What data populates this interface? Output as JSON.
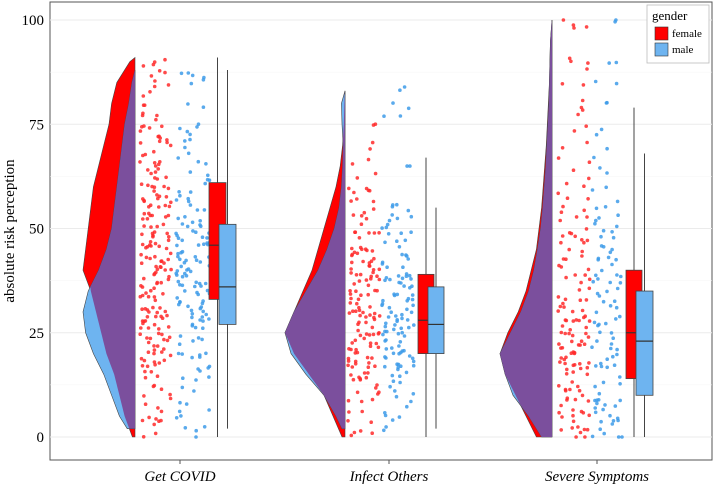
{
  "chart_data": {
    "type": "raincloud",
    "ylabel": "absolute risk perception",
    "ylim": [
      0,
      100
    ],
    "yticks": [
      0,
      25,
      50,
      75,
      100
    ],
    "categories": [
      "Get COVID",
      "Infect Others",
      "Severe Symptoms"
    ],
    "legend": {
      "title": "gender",
      "position": "top-right",
      "entries": [
        {
          "label": "female",
          "color": "#ff0000"
        },
        {
          "label": "male",
          "color": "#6eb4f0"
        }
      ]
    },
    "overlap_color": "#7b4f9d",
    "series": [
      {
        "name": "female",
        "color": "#ff0000",
        "box": [
          {
            "category": "Get COVID",
            "whisker_low": 0,
            "q1": 33,
            "median": 46,
            "q3": 61,
            "whisker_high": 91
          },
          {
            "category": "Infect Others",
            "whisker_low": 0,
            "q1": 20,
            "median": 28,
            "q3": 39,
            "whisker_high": 67
          },
          {
            "category": "Severe Symptoms",
            "whisker_low": 0,
            "q1": 14,
            "median": 25,
            "q3": 40,
            "whisker_high": 79
          }
        ],
        "density": [
          {
            "category": "Get COVID",
            "y": [
              0,
              5,
              10,
              15,
              20,
              25,
              30,
              35,
              40,
              45,
              50,
              55,
              60,
              65,
              70,
              75,
              80,
              85,
              90,
              91
            ],
            "d": [
              0.05,
              0.2,
              0.3,
              0.4,
              0.55,
              0.65,
              0.75,
              0.85,
              1.0,
              0.95,
              0.9,
              0.85,
              0.8,
              0.7,
              0.6,
              0.5,
              0.45,
              0.35,
              0.1,
              0.0
            ]
          },
          {
            "category": "Infect Others",
            "y": [
              0,
              5,
              10,
              15,
              20,
              25,
              30,
              35,
              40,
              45,
              50,
              55,
              60,
              65,
              70,
              75,
              80,
              83
            ],
            "d": [
              0.05,
              0.2,
              0.35,
              0.6,
              0.85,
              1.0,
              0.85,
              0.7,
              0.55,
              0.45,
              0.35,
              0.25,
              0.15,
              0.08,
              0.04,
              0.02,
              0.01,
              0.0
            ]
          },
          {
            "category": "Severe Symptoms",
            "y": [
              0,
              5,
              10,
              15,
              20,
              25,
              30,
              35,
              40,
              45,
              50,
              55,
              60,
              65,
              70,
              75,
              80,
              85,
              90,
              95,
              100
            ],
            "d": [
              0.3,
              0.5,
              0.7,
              0.9,
              1.0,
              0.85,
              0.65,
              0.5,
              0.4,
              0.3,
              0.25,
              0.2,
              0.17,
              0.14,
              0.11,
              0.09,
              0.07,
              0.05,
              0.04,
              0.03,
              0.0
            ]
          }
        ]
      },
      {
        "name": "male",
        "color": "#6eb4f0",
        "box": [
          {
            "category": "Get COVID",
            "whisker_low": 2,
            "q1": 27,
            "median": 36,
            "q3": 51,
            "whisker_high": 88
          },
          {
            "category": "Infect Others",
            "whisker_low": 2,
            "q1": 20,
            "median": 27,
            "q3": 36,
            "whisker_high": 55
          },
          {
            "category": "Severe Symptoms",
            "whisker_low": 0,
            "q1": 10,
            "median": 23,
            "q3": 35,
            "whisker_high": 68
          }
        ],
        "density": [
          {
            "category": "Get COVID",
            "y": [
              2,
              5,
              10,
              15,
              20,
              25,
              30,
              35,
              40,
              45,
              50,
              55,
              60,
              65,
              70,
              75,
              80,
              85,
              88
            ],
            "d": [
              0.15,
              0.3,
              0.45,
              0.6,
              0.8,
              0.95,
              1.0,
              0.9,
              0.7,
              0.55,
              0.45,
              0.4,
              0.35,
              0.3,
              0.25,
              0.2,
              0.12,
              0.06,
              0.0
            ]
          },
          {
            "category": "Infect Others",
            "y": [
              2,
              5,
              10,
              15,
              20,
              25,
              30,
              35,
              40,
              45,
              50,
              55,
              60,
              65,
              70,
              75,
              80,
              83
            ],
            "d": [
              0.05,
              0.15,
              0.35,
              0.65,
              0.9,
              1.0,
              0.85,
              0.65,
              0.45,
              0.3,
              0.18,
              0.1,
              0.06,
              0.04,
              0.03,
              0.05,
              0.06,
              0.0
            ]
          },
          {
            "category": "Severe Symptoms",
            "y": [
              0,
              5,
              10,
              15,
              20,
              25,
              30,
              35,
              40,
              45,
              50,
              55,
              60,
              65,
              70,
              75,
              80,
              85,
              90,
              95,
              100
            ],
            "d": [
              0.2,
              0.45,
              0.75,
              0.9,
              1.0,
              0.8,
              0.6,
              0.45,
              0.35,
              0.28,
              0.22,
              0.18,
              0.15,
              0.12,
              0.1,
              0.08,
              0.06,
              0.05,
              0.04,
              0.03,
              0.0
            ]
          }
        ]
      }
    ],
    "points": {
      "female": [
        [
          0.7,
          3.0,
          4.0,
          5.0,
          7.0,
          9.0,
          10.0,
          12.0,
          13.0,
          15.0,
          16.0,
          18.0,
          19.0,
          20.0,
          21.0,
          22.0,
          23.0,
          24.0,
          25.0,
          26.0,
          27.0,
          28.0,
          29.0,
          30.0,
          31.0,
          32.0,
          33.0,
          34.0,
          35.0,
          36.0,
          37.0,
          38.0,
          39.0,
          40.0,
          41.0,
          42.0,
          43.0,
          44.0,
          45.0,
          46.0,
          47.0,
          48.0,
          49.0,
          50.0,
          51.0,
          52.0,
          53.0,
          54.0,
          55.0,
          56.0,
          57.0,
          58.0,
          59.0,
          60.0,
          61.0,
          62.0,
          63.0,
          64.0,
          65.0,
          66.0,
          67.0,
          68.0,
          69.0,
          70.0,
          71.0,
          72.0,
          73.0,
          74.0,
          75.0,
          76.0,
          78.0,
          80.0,
          82.0,
          84.0,
          86.0,
          88.0,
          89.0,
          90.0
        ],
        [
          0.5,
          2.0,
          4.0,
          6.0,
          8.0,
          10.0,
          11.0,
          12.0,
          13.0,
          14.0,
          15.0,
          16.0,
          17.0,
          18.0,
          19.0,
          20.0,
          21.0,
          22.0,
          23.0,
          24.0,
          25.0,
          26.0,
          27.0,
          28.0,
          29.0,
          30.0,
          31.0,
          32.0,
          33.0,
          34.0,
          35.0,
          36.0,
          37.0,
          38.0,
          39.0,
          40.0,
          41.0,
          42.0,
          43.0,
          44.0,
          45.0,
          46.0,
          48.0,
          50.0,
          52.0,
          54.0,
          56.0,
          58.0,
          60.0,
          63.0,
          66.0,
          70.0,
          75.0
        ],
        [
          0.3,
          1.0,
          2.0,
          3.0,
          4.0,
          5.0,
          6.0,
          7.0,
          8.0,
          9.0,
          10.0,
          11.0,
          12.0,
          13.0,
          14.0,
          15.0,
          16.0,
          17.0,
          18.0,
          19.0,
          20.0,
          21.0,
          22.0,
          23.0,
          24.0,
          25.0,
          26.0,
          27.0,
          28.0,
          29.0,
          30.0,
          32.0,
          34.0,
          36.0,
          38.0,
          40.0,
          42.0,
          44.0,
          46.0,
          48.0,
          50.0,
          52.0,
          55.0,
          58.0,
          60.0,
          63.0,
          66.0,
          70.0,
          74.0,
          78.0,
          80.0,
          85.0,
          89.0,
          90.0,
          99.0,
          100.0
        ]
      ],
      "male": [
        [
          1.0,
          3.0,
          5.0,
          7.0,
          9.0,
          11.0,
          13.0,
          15.0,
          17.0,
          19.0,
          21.0,
          23.0,
          25.0,
          27.0,
          28.0,
          29.0,
          30.0,
          31.0,
          32.0,
          33.0,
          34.0,
          35.0,
          36.0,
          37.0,
          38.0,
          39.0,
          40.0,
          41.0,
          42.0,
          43.0,
          44.0,
          45.0,
          46.0,
          47.0,
          48.0,
          49.0,
          50.0,
          51.0,
          52.0,
          54.0,
          56.0,
          58.0,
          60.0,
          62.0,
          64.0,
          66.0,
          68.0,
          70.0,
          72.0,
          74.0,
          75.0,
          80.0,
          85.0,
          86.0,
          87.0
        ],
        [
          2.0,
          4.0,
          6.0,
          8.0,
          10.0,
          12.0,
          14.0,
          15.0,
          16.0,
          17.0,
          18.0,
          19.0,
          20.0,
          21.0,
          22.0,
          23.0,
          24.0,
          25.0,
          26.0,
          27.0,
          28.0,
          29.0,
          30.0,
          31.0,
          32.0,
          33.0,
          34.0,
          35.0,
          36.0,
          37.0,
          38.0,
          39.0,
          40.0,
          42.0,
          44.0,
          46.0,
          48.0,
          50.0,
          52.0,
          54.0,
          55.0,
          65.0,
          78.0,
          80.0,
          83.0
        ],
        [
          0.4,
          1.0,
          2.0,
          3.0,
          4.0,
          5.0,
          6.0,
          7.0,
          8.0,
          9.0,
          10.0,
          12.0,
          14.0,
          16.0,
          18.0,
          20.0,
          22.0,
          24.0,
          26.0,
          28.0,
          30.0,
          32.0,
          34.0,
          36.0,
          38.0,
          40.0,
          42.0,
          44.0,
          46.0,
          48.0,
          50.0,
          53.0,
          56.0,
          60.0,
          64.0,
          68.0,
          73.0,
          80.0,
          85.0,
          89.0,
          100.0
        ]
      ]
    }
  }
}
